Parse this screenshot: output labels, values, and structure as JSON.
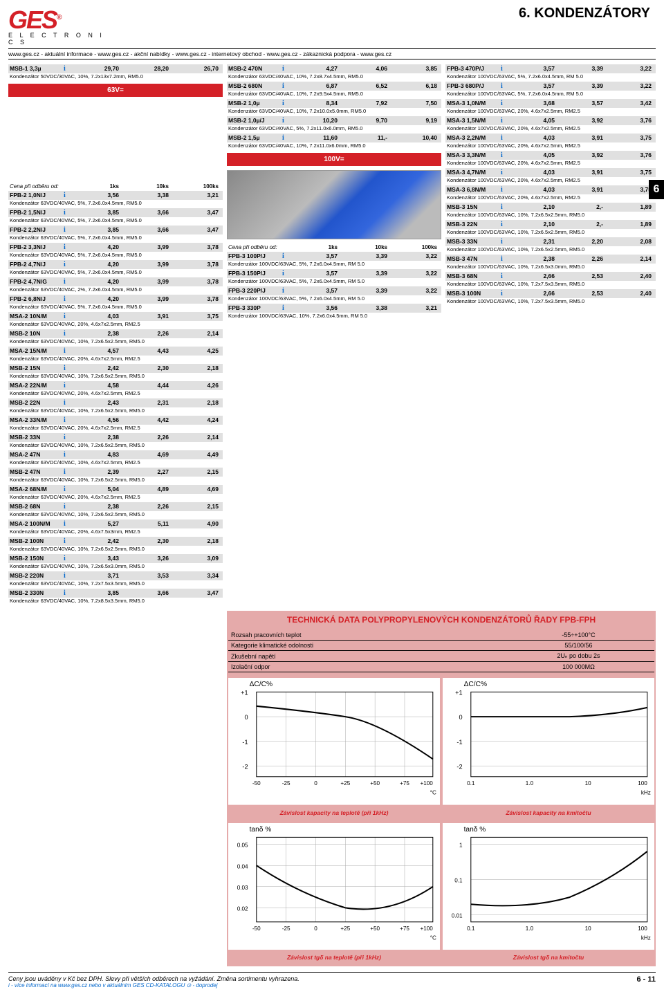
{
  "logo": {
    "brand": "GES",
    "reg": "®",
    "sub": "E L E C T R O N I C S"
  },
  "section": "6. KONDENZÁTORY",
  "urls": "www.ges.cz - aktuální informace - www.ges.cz - akční nabídky - www.ges.cz - internetový obchod - www.ges.cz - zákaznická podpora - www.ges.cz",
  "side_tab": "6",
  "price_header": {
    "label": "Cena při odběru od:",
    "h1": "1ks",
    "h2": "10ks",
    "h3": "100ks"
  },
  "box_title": "63V=",
  "box_title2": "100V=",
  "col1_top": [
    {
      "name": "MSB-1 3,3µ",
      "p": [
        "29,70",
        "28,20",
        "26,70"
      ],
      "desc": "Kondenzátor 50VDC/30VAC, 10%, 7.2x13x7.2mm, RM5.0"
    }
  ],
  "col1": [
    {
      "name": "FPB-2 1,0N/J",
      "p": [
        "3,56",
        "3,38",
        "3,21"
      ],
      "desc": "Kondenzátor 63VDC/40VAC, 5%, 7.2x6.0x4.5mm, RM5.0"
    },
    {
      "name": "FPB-2 1,5N/J",
      "p": [
        "3,85",
        "3,66",
        "3,47"
      ],
      "desc": "Kondenzátor 63VDC/40VAC, 5%, 7.2x6.0x4.5mm, RM5.0"
    },
    {
      "name": "FPB-2 2,2N/J",
      "p": [
        "3,85",
        "3,66",
        "3,47"
      ],
      "desc": "Kondenzátor 63VDC/40VAC, 5%, 7.2x6.0x4.5mm, RM5.0"
    },
    {
      "name": "FPB-2 3,3N/J",
      "p": [
        "4,20",
        "3,99",
        "3,78"
      ],
      "desc": "Kondenzátor 63VDC/40VAC, 5%, 7.2x6.0x4.5mm, RM5.0"
    },
    {
      "name": "FPB-2 4,7N/J",
      "p": [
        "4,20",
        "3,99",
        "3,78"
      ],
      "desc": "Kondenzátor 63VDC/40VAC, 5%, 7.2x6.0x4.5mm, RM5.0"
    },
    {
      "name": "FPB-2 4,7N/G",
      "p": [
        "4,20",
        "3,99",
        "3,78"
      ],
      "desc": "Kondenzátor 63VDC/40VAC, 2%, 7.2x6.0x4.5mm, RM5.0"
    },
    {
      "name": "FPB-2 6,8N/J",
      "p": [
        "4,20",
        "3,99",
        "3,78"
      ],
      "desc": "Kondenzátor 63VDC/40VAC, 5%, 7.2x6.0x4.5mm, RM5.0"
    },
    {
      "name": "MSA-2 10N/M",
      "p": [
        "4,03",
        "3,91",
        "3,75"
      ],
      "desc": "Kondenzátor 63VDC/40VAC, 20%, 4.6x7x2.5mm, RM2.5"
    },
    {
      "name": "MSB-2 10N",
      "p": [
        "2,38",
        "2,26",
        "2,14"
      ],
      "desc": "Kondenzátor 63VDC/40VAC, 10%, 7.2x6.5x2.5mm, RM5.0"
    },
    {
      "name": "MSA-2 15N/M",
      "p": [
        "4,57",
        "4,43",
        "4,25"
      ],
      "desc": "Kondenzátor 63VDC/40VAC, 20%, 4.6x7x2.5mm, RM2.5"
    },
    {
      "name": "MSB-2 15N",
      "p": [
        "2,42",
        "2,30",
        "2,18"
      ],
      "desc": "Kondenzátor 63VDC/40VAC, 10%, 7.2x6.5x2.5mm, RM5.0"
    },
    {
      "name": "MSA-2 22N/M",
      "p": [
        "4,58",
        "4,44",
        "4,26"
      ],
      "desc": "Kondenzátor 63VDC/40VAC, 20%, 4.6x7x2.5mm, RM2.5"
    },
    {
      "name": "MSB-2 22N",
      "p": [
        "2,43",
        "2,31",
        "2,18"
      ],
      "desc": "Kondenzátor 63VDC/40VAC, 10%, 7.2x6.5x2.5mm, RM5.0"
    },
    {
      "name": "MSA-2 33N/M",
      "p": [
        "4,56",
        "4,42",
        "4,24"
      ],
      "desc": "Kondenzátor 63VDC/40VAC, 20%, 4.6x7x2.5mm, RM2.5"
    },
    {
      "name": "MSB-2 33N",
      "p": [
        "2,38",
        "2,26",
        "2,14"
      ],
      "desc": "Kondenzátor 63VDC/40VAC, 10%, 7.2x6.5x2.5mm, RM5.0"
    },
    {
      "name": "MSA-2 47N",
      "p": [
        "4,83",
        "4,69",
        "4,49"
      ],
      "desc": "Kondenzátor 63VDC/40VAC, 10%, 4.6x7x2.5mm, RM2.5"
    },
    {
      "name": "MSB-2 47N",
      "p": [
        "2,39",
        "2,27",
        "2,15"
      ],
      "desc": "Kondenzátor 63VDC/40VAC, 10%, 7.2x6.5x2.5mm, RM5.0"
    },
    {
      "name": "MSA-2 68N/M",
      "p": [
        "5,04",
        "4,89",
        "4,69"
      ],
      "desc": "Kondenzátor 63VDC/40VAC, 20%, 4.6x7x2.5mm, RM2.5"
    },
    {
      "name": "MSB-2 68N",
      "p": [
        "2,38",
        "2,26",
        "2,15"
      ],
      "desc": "Kondenzátor 63VDC/40VAC, 10%, 7.2x6.5x2.5mm, RM5.0"
    },
    {
      "name": "MSA-2 100N/M",
      "p": [
        "5,27",
        "5,11",
        "4,90"
      ],
      "desc": "Kondenzátor 63VDC/40VAC, 20%, 4.6x7.5x3mm, RM2.5"
    },
    {
      "name": "MSB-2 100N",
      "p": [
        "2,42",
        "2,30",
        "2,18"
      ],
      "desc": "Kondenzátor 63VDC/40VAC, 10%, 7.2x6.5x2.5mm, RM5.0"
    },
    {
      "name": "MSB-2 150N",
      "p": [
        "3,43",
        "3,26",
        "3,09"
      ],
      "desc": "Kondenzátor 63VDC/40VAC, 10%, 7.2x6.5x3.0mm, RM5.0"
    },
    {
      "name": "MSB-2 220N",
      "p": [
        "3,71",
        "3,53",
        "3,34"
      ],
      "desc": "Kondenzátor 63VDC/40VAC, 10%, 7.2x7.5x3.5mm, RM5.0"
    },
    {
      "name": "MSB-2 330N",
      "p": [
        "3,85",
        "3,66",
        "3,47"
      ],
      "desc": "Kondenzátor 63VDC/40VAC, 10%, 7.2x8.5x3.5mm, RM5.0"
    }
  ],
  "col2_top": [
    {
      "name": "MSB-2 470N",
      "p": [
        "4,27",
        "4,06",
        "3,85"
      ],
      "desc": "Kondenzátor 63VDC/40VAC, 10%, 7.2x8.7x4.5mm, RM5.0"
    },
    {
      "name": "MSB-2 680N",
      "p": [
        "6,87",
        "6,52",
        "6,18"
      ],
      "desc": "Kondenzátor 63VDC/40VAC, 10%, 7.2x9.5x4.5mm, RM5.0"
    },
    {
      "name": "MSB-2 1,0µ",
      "p": [
        "8,34",
        "7,92",
        "7,50"
      ],
      "desc": "Kondenzátor 63VDC/40VAC, 10%, 7.2x10.0x5.0mm, RM5.0"
    },
    {
      "name": "MSB-2 1,0µ/J",
      "p": [
        "10,20",
        "9,70",
        "9,19"
      ],
      "desc": "Kondenzátor 63VDC/40VAC, 5%, 7.2x11.0x6.0mm, RM5.0"
    },
    {
      "name": "MSB-2 1,5µ",
      "p": [
        "11,60",
        "11,-",
        "10,40"
      ],
      "desc": "Kondenzátor 63VDC/40VAC, 10%, 7.2x11.0x6.0mm, RM5.0"
    }
  ],
  "col2": [
    {
      "name": "FPB-3 100P/J",
      "p": [
        "3,57",
        "3,39",
        "3,22"
      ],
      "desc": "Kondenzátor 100VDC/63VAC, 5%, 7.2x6.0x4.5mm, RM 5.0"
    },
    {
      "name": "FPB-3 150P/J",
      "p": [
        "3,57",
        "3,39",
        "3,22"
      ],
      "desc": "Kondenzátor 100VDC/63VAC, 5%, 7.2x6.0x4.5mm, RM 5.0"
    },
    {
      "name": "FPB-3 220P/J",
      "p": [
        "3,57",
        "3,39",
        "3,22"
      ],
      "desc": "Kondenzátor 100VDC/63VAC, 5%, 7.2x6.0x4.5mm, RM 5.0"
    },
    {
      "name": "FPB-3 330P",
      "p": [
        "3,56",
        "3,38",
        "3,21"
      ],
      "desc": "Kondenzátor 100VDC/63VAC, 10%, 7.2x6.0x4.5mm, RM 5.0"
    }
  ],
  "col3": [
    {
      "name": "FPB-3 470P/J",
      "p": [
        "3,57",
        "3,39",
        "3,22"
      ],
      "desc": "Kondenzátor 100VDC/63VAC, 5%, 7.2x6.0x4.5mm, RM 5.0"
    },
    {
      "name": "FPB-3 680P/J",
      "p": [
        "3,57",
        "3,39",
        "3,22"
      ],
      "desc": "Kondenzátor 100VDC/63VAC, 5%, 7.2x6.0x4.5mm, RM 5.0"
    },
    {
      "name": "MSA-3 1,0N/M",
      "p": [
        "3,68",
        "3,57",
        "3,42"
      ],
      "desc": "Kondenzátor 100VDC/63VAC, 20%, 4.6x7x2.5mm, RM2.5"
    },
    {
      "name": "MSA-3 1,5N/M",
      "p": [
        "4,05",
        "3,92",
        "3,76"
      ],
      "desc": "Kondenzátor 100VDC/63VAC, 20%, 4.6x7x2.5mm, RM2.5"
    },
    {
      "name": "MSA-3 2,2N/M",
      "p": [
        "4,03",
        "3,91",
        "3,75"
      ],
      "desc": "Kondenzátor 100VDC/63VAC, 20%, 4.6x7x2.5mm, RM2.5"
    },
    {
      "name": "MSA-3 3,3N/M",
      "p": [
        "4,05",
        "3,92",
        "3,76"
      ],
      "desc": "Kondenzátor 100VDC/63VAC, 20%, 4.6x7x2.5mm, RM2.5"
    },
    {
      "name": "MSA-3 4,7N/M",
      "p": [
        "4,03",
        "3,91",
        "3,75"
      ],
      "desc": "Kondenzátor 100VDC/63VAC, 20%, 4.6x7x2.5mm, RM2.5"
    },
    {
      "name": "MSA-3 6,8N/M",
      "p": [
        "4,03",
        "3,91",
        "3,75"
      ],
      "desc": "Kondenzátor 100VDC/63VAC, 20%, 4.6x7x2.5mm, RM2.5"
    },
    {
      "name": "MSB-3 15N",
      "p": [
        "2,10",
        "2,-",
        "1,89"
      ],
      "desc": "Kondenzátor 100VDC/63VAC, 10%, 7.2x6.5x2.5mm, RM5.0"
    },
    {
      "name": "MSB-3 22N",
      "p": [
        "2,10",
        "2,-",
        "1,89"
      ],
      "desc": "Kondenzátor 100VDC/63VAC, 10%, 7.2x6.5x2.5mm, RM5.0"
    },
    {
      "name": "MSB-3 33N",
      "p": [
        "2,31",
        "2,20",
        "2,08"
      ],
      "desc": "Kondenzátor 100VDC/63VAC, 10%, 7.2x6.5x2.5mm, RM5.0"
    },
    {
      "name": "MSB-3 47N",
      "p": [
        "2,38",
        "2,26",
        "2,14"
      ],
      "desc": "Kondenzátor 100VDC/63VAC, 10%, 7.2x6.5x3.0mm, RM5.0"
    },
    {
      "name": "MSB-3 68N",
      "p": [
        "2,66",
        "2,53",
        "2,40"
      ],
      "desc": "Kondenzátor 100VDC/63VAC, 10%, 7.2x7.5x3.5mm, RM5.0"
    },
    {
      "name": "MSB-3 100N",
      "p": [
        "2,66",
        "2,53",
        "2,40"
      ],
      "desc": "Kondenzátor 100VDC/63VAC, 10%, 7.2x7.5x3.5mm, RM5.0"
    }
  ],
  "tech_title": "TECHNICKÁ DATA POLYPROPYLENOVÝCH KONDENZÁTORŮ ŘADY FPB-FPH",
  "specs": [
    [
      "Rozsah pracovních teplot",
      "-55÷+100°C"
    ],
    [
      "Kategorie klimatické odolnosti",
      "55/100/56"
    ],
    [
      "Zkušební napětí",
      "2Uₙ po dobu 2s"
    ],
    [
      "Izolační odpor",
      "100 000MΩ"
    ]
  ],
  "chart1": {
    "ylabel": "ΔC/C%",
    "xticks": [
      "-50",
      "-25",
      "0",
      "+25",
      "+50",
      "+75",
      "+100"
    ],
    "xunit": "°C",
    "yticks": [
      "+1",
      "0",
      "-1",
      "-2"
    ],
    "caption": "Závislost kapacity na teplotě (při 1kHz)",
    "line_color": "#000",
    "grid_color": "#aaa"
  },
  "chart2": {
    "ylabel": "ΔC/C%",
    "xticks": [
      "0.1",
      "1.0",
      "10",
      "100"
    ],
    "xunit": "kHz",
    "yticks": [
      "+1",
      "0",
      "-1",
      "-2"
    ],
    "caption": "Závislost kapacity na kmitočtu",
    "line_color": "#000",
    "grid_color": "#aaa"
  },
  "chart3": {
    "ylabel": "tanδ %",
    "xticks": [
      "-50",
      "-25",
      "0",
      "+25",
      "+50",
      "+75",
      "+100"
    ],
    "xunit": "°C",
    "yticks": [
      "0.05",
      "0.04",
      "0.03",
      "0.02"
    ],
    "caption": "Závislost tgδ na teplotě (při 1kHz)",
    "line_color": "#000",
    "grid_color": "#aaa"
  },
  "chart4": {
    "ylabel": "tanδ %",
    "xticks": [
      "0.1",
      "1.0",
      "10",
      "100"
    ],
    "xunit": "kHz",
    "yticks": [
      "1",
      "0.1",
      "0.01"
    ],
    "caption": "Závislost tgδ na kmitočtu",
    "line_color": "#000",
    "grid_color": "#aaa"
  },
  "footer": {
    "line1": "Ceny jsou uváděny v Kč bez DPH. Slevy při větších odběrech na vyžádání. Změna sortimentu vyhrazena.",
    "line2": "i - více informací na www.ges.cz nebo v aktuálním GES CD-KATALOGU   ⊙ - doprodej",
    "page": "6 - 11"
  }
}
